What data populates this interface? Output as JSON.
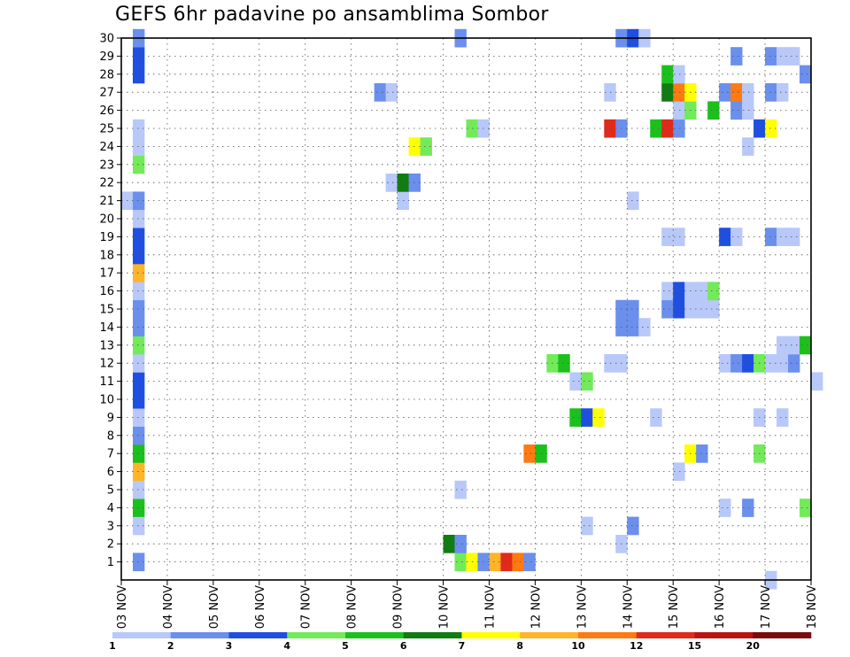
{
  "chart_data": {
    "type": "heatmap",
    "title": "GEFS 6hr padavine po ansamblima Sombor",
    "xlabel": "",
    "ylabel": "",
    "x_tick_labels": [
      "03 NOV",
      "04 NOV",
      "05 NOV",
      "06 NOV",
      "07 NOV",
      "08 NOV",
      "09 NOV",
      "10 NOV",
      "11 NOV",
      "12 NOV",
      "13 NOV",
      "14 NOV",
      "15 NOV",
      "16 NOV",
      "17 NOV",
      "18 NOV"
    ],
    "x_range_days": [
      0,
      15
    ],
    "y_range_members": [
      0,
      30
    ],
    "y_tick_labels": [
      "1",
      "2",
      "3",
      "4",
      "5",
      "6",
      "7",
      "8",
      "9",
      "10",
      "11",
      "12",
      "13",
      "14",
      "15",
      "16",
      "17",
      "18",
      "19",
      "20",
      "21",
      "22",
      "23",
      "24",
      "25",
      "26",
      "27",
      "28",
      "29",
      "30"
    ],
    "colorbar": {
      "labels": [
        "1",
        "2",
        "3",
        "4",
        "5",
        "6",
        "7",
        "8",
        "10",
        "12",
        "15",
        "20"
      ],
      "colors": [
        "#b8c8f8",
        "#6b8fec",
        "#1f4fe0",
        "#72ea5a",
        "#1cc01c",
        "#117c11",
        "#ffff00",
        "#ffb42a",
        "#ff7a10",
        "#e02a1a",
        "#b81414",
        "#7a0c0c"
      ]
    },
    "cells": [
      [
        1,
        0.25,
        "#6b8fec"
      ],
      [
        1,
        7.25,
        "#72ea5a"
      ],
      [
        1,
        7.5,
        "#ffff00"
      ],
      [
        1,
        7.75,
        "#6b8fec"
      ],
      [
        1,
        8.0,
        "#ffb42a"
      ],
      [
        1,
        8.25,
        "#e02a1a"
      ],
      [
        1,
        8.5,
        "#ff7a10"
      ],
      [
        1,
        8.75,
        "#6b8fec"
      ],
      [
        2,
        7.0,
        "#117c11"
      ],
      [
        2,
        7.25,
        "#6b8fec"
      ],
      [
        2,
        10.75,
        "#b8c8f8"
      ],
      [
        3,
        0.25,
        "#b8c8f8"
      ],
      [
        3,
        10.0,
        "#b8c8f8"
      ],
      [
        3,
        11.0,
        "#6b8fec"
      ],
      [
        4,
        0.25,
        "#1cc01c"
      ],
      [
        4,
        13.0,
        "#b8c8f8"
      ],
      [
        4,
        13.5,
        "#6b8fec"
      ],
      [
        4,
        14.75,
        "#72ea5a"
      ],
      [
        5,
        0.25,
        "#b8c8f8"
      ],
      [
        5,
        7.25,
        "#b8c8f8"
      ],
      [
        6,
        0.25,
        "#ffb42a"
      ],
      [
        6,
        12.0,
        "#b8c8f8"
      ],
      [
        7,
        0.25,
        "#1cc01c"
      ],
      [
        7,
        8.75,
        "#ff7a10"
      ],
      [
        7,
        9.0,
        "#1cc01c"
      ],
      [
        7,
        12.25,
        "#ffff00"
      ],
      [
        7,
        12.5,
        "#6b8fec"
      ],
      [
        7,
        13.75,
        "#72ea5a"
      ],
      [
        8,
        0.25,
        "#6b8fec"
      ],
      [
        9,
        0.25,
        "#b8c8f8"
      ],
      [
        9,
        9.75,
        "#1cc01c"
      ],
      [
        9,
        10.0,
        "#1f4fe0"
      ],
      [
        9,
        10.25,
        "#ffff00"
      ],
      [
        9,
        11.5,
        "#b8c8f8"
      ],
      [
        9,
        13.75,
        "#b8c8f8"
      ],
      [
        9,
        14.25,
        "#b8c8f8"
      ],
      [
        10,
        0.25,
        "#1f4fe0"
      ],
      [
        11,
        0.25,
        "#1f4fe0"
      ],
      [
        11,
        9.75,
        "#b8c8f8"
      ],
      [
        11,
        10.0,
        "#72ea5a"
      ],
      [
        11,
        15.0,
        "#b8c8f8"
      ],
      [
        12,
        0.25,
        "#b8c8f8"
      ],
      [
        12,
        9.25,
        "#72ea5a"
      ],
      [
        12,
        9.5,
        "#1cc01c"
      ],
      [
        12,
        10.5,
        "#b8c8f8"
      ],
      [
        12,
        10.75,
        "#b8c8f8"
      ],
      [
        12,
        13.0,
        "#b8c8f8"
      ],
      [
        12,
        13.25,
        "#6b8fec"
      ],
      [
        12,
        13.5,
        "#1f4fe0"
      ],
      [
        12,
        13.75,
        "#72ea5a"
      ],
      [
        12,
        14.0,
        "#b8c8f8"
      ],
      [
        12,
        14.25,
        "#b8c8f8"
      ],
      [
        12,
        14.5,
        "#6b8fec"
      ],
      [
        13,
        0.25,
        "#72ea5a"
      ],
      [
        13,
        14.25,
        "#b8c8f8"
      ],
      [
        13,
        14.5,
        "#b8c8f8"
      ],
      [
        13,
        14.75,
        "#1cc01c"
      ],
      [
        14,
        0.25,
        "#6b8fec"
      ],
      [
        14,
        10.75,
        "#6b8fec"
      ],
      [
        14,
        11.0,
        "#6b8fec"
      ],
      [
        14,
        11.25,
        "#b8c8f8"
      ],
      [
        15,
        0.25,
        "#6b8fec"
      ],
      [
        15,
        10.75,
        "#6b8fec"
      ],
      [
        15,
        11.0,
        "#6b8fec"
      ],
      [
        15,
        11.75,
        "#6b8fec"
      ],
      [
        15,
        12.0,
        "#1f4fe0"
      ],
      [
        15,
        12.25,
        "#b8c8f8"
      ],
      [
        15,
        12.5,
        "#b8c8f8"
      ],
      [
        15,
        12.75,
        "#b8c8f8"
      ],
      [
        16,
        0.25,
        "#b8c8f8"
      ],
      [
        16,
        11.75,
        "#b8c8f8"
      ],
      [
        16,
        12.0,
        "#1f4fe0"
      ],
      [
        16,
        12.25,
        "#b8c8f8"
      ],
      [
        16,
        12.5,
        "#b8c8f8"
      ],
      [
        16,
        12.75,
        "#b8c8f8"
      ],
      [
        16,
        12.75,
        "#72ea5a"
      ],
      [
        17,
        0.25,
        "#ffb42a"
      ],
      [
        18,
        0.25,
        "#1f4fe0"
      ],
      [
        19,
        0.25,
        "#1f4fe0"
      ],
      [
        19,
        11.75,
        "#b8c8f8"
      ],
      [
        19,
        12.0,
        "#b8c8f8"
      ],
      [
        19,
        13.0,
        "#1f4fe0"
      ],
      [
        19,
        13.25,
        "#b8c8f8"
      ],
      [
        19,
        14.0,
        "#6b8fec"
      ],
      [
        19,
        14.25,
        "#b8c8f8"
      ],
      [
        19,
        14.5,
        "#b8c8f8"
      ],
      [
        20,
        0.25,
        "#b8c8f8"
      ],
      [
        21,
        0.0,
        "#b8c8f8"
      ],
      [
        21,
        0.25,
        "#6b8fec"
      ],
      [
        21,
        6.0,
        "#b8c8f8"
      ],
      [
        21,
        11.0,
        "#b8c8f8"
      ],
      [
        22,
        5.75,
        "#b8c8f8"
      ],
      [
        22,
        6.0,
        "#117c11"
      ],
      [
        22,
        6.25,
        "#6b8fec"
      ],
      [
        23,
        0.25,
        "#72ea5a"
      ],
      [
        24,
        0.25,
        "#b8c8f8"
      ],
      [
        24,
        6.25,
        "#ffff00"
      ],
      [
        24,
        6.5,
        "#72ea5a"
      ],
      [
        24,
        13.5,
        "#b8c8f8"
      ],
      [
        25,
        0.25,
        "#b8c8f8"
      ],
      [
        25,
        7.5,
        "#72ea5a"
      ],
      [
        25,
        7.75,
        "#b8c8f8"
      ],
      [
        25,
        10.5,
        "#e02a1a"
      ],
      [
        25,
        10.75,
        "#6b8fec"
      ],
      [
        25,
        11.5,
        "#1cc01c"
      ],
      [
        25,
        11.75,
        "#e02a1a"
      ],
      [
        25,
        12.0,
        "#6b8fec"
      ],
      [
        25,
        13.75,
        "#1f4fe0"
      ],
      [
        25,
        14.0,
        "#ffff00"
      ],
      [
        26,
        12.0,
        "#b8c8f8"
      ],
      [
        26,
        12.25,
        "#72ea5a"
      ],
      [
        26,
        12.75,
        "#1cc01c"
      ],
      [
        26,
        13.25,
        "#6b8fec"
      ],
      [
        26,
        13.5,
        "#b8c8f8"
      ],
      [
        27,
        5.5,
        "#6b8fec"
      ],
      [
        27,
        5.75,
        "#b8c8f8"
      ],
      [
        27,
        10.5,
        "#b8c8f8"
      ],
      [
        27,
        11.75,
        "#117c11"
      ],
      [
        27,
        12.0,
        "#ff7a10"
      ],
      [
        27,
        12.25,
        "#ffff00"
      ],
      [
        27,
        13.0,
        "#6b8fec"
      ],
      [
        27,
        13.25,
        "#ff7a10"
      ],
      [
        27,
        13.5,
        "#b8c8f8"
      ],
      [
        27,
        14.0,
        "#6b8fec"
      ],
      [
        27,
        14.25,
        "#b8c8f8"
      ],
      [
        28,
        0.25,
        "#1f4fe0"
      ],
      [
        28,
        11.75,
        "#1cc01c"
      ],
      [
        28,
        12.0,
        "#b8c8f8"
      ],
      [
        28,
        14.75,
        "#6b8fec"
      ],
      [
        29,
        0.25,
        "#1f4fe0"
      ],
      [
        29,
        13.25,
        "#6b8fec"
      ],
      [
        29,
        14.0,
        "#6b8fec"
      ],
      [
        29,
        14.25,
        "#b8c8f8"
      ],
      [
        29,
        14.5,
        "#b8c8f8"
      ],
      [
        30,
        0.25,
        "#6b8fec"
      ],
      [
        30,
        7.25,
        "#6b8fec"
      ],
      [
        30,
        10.75,
        "#6b8fec"
      ],
      [
        30,
        11.0,
        "#1f4fe0"
      ],
      [
        30,
        11.25,
        "#b8c8f8"
      ],
      [
        0,
        14.0,
        "#b8c8f8"
      ]
    ]
  }
}
